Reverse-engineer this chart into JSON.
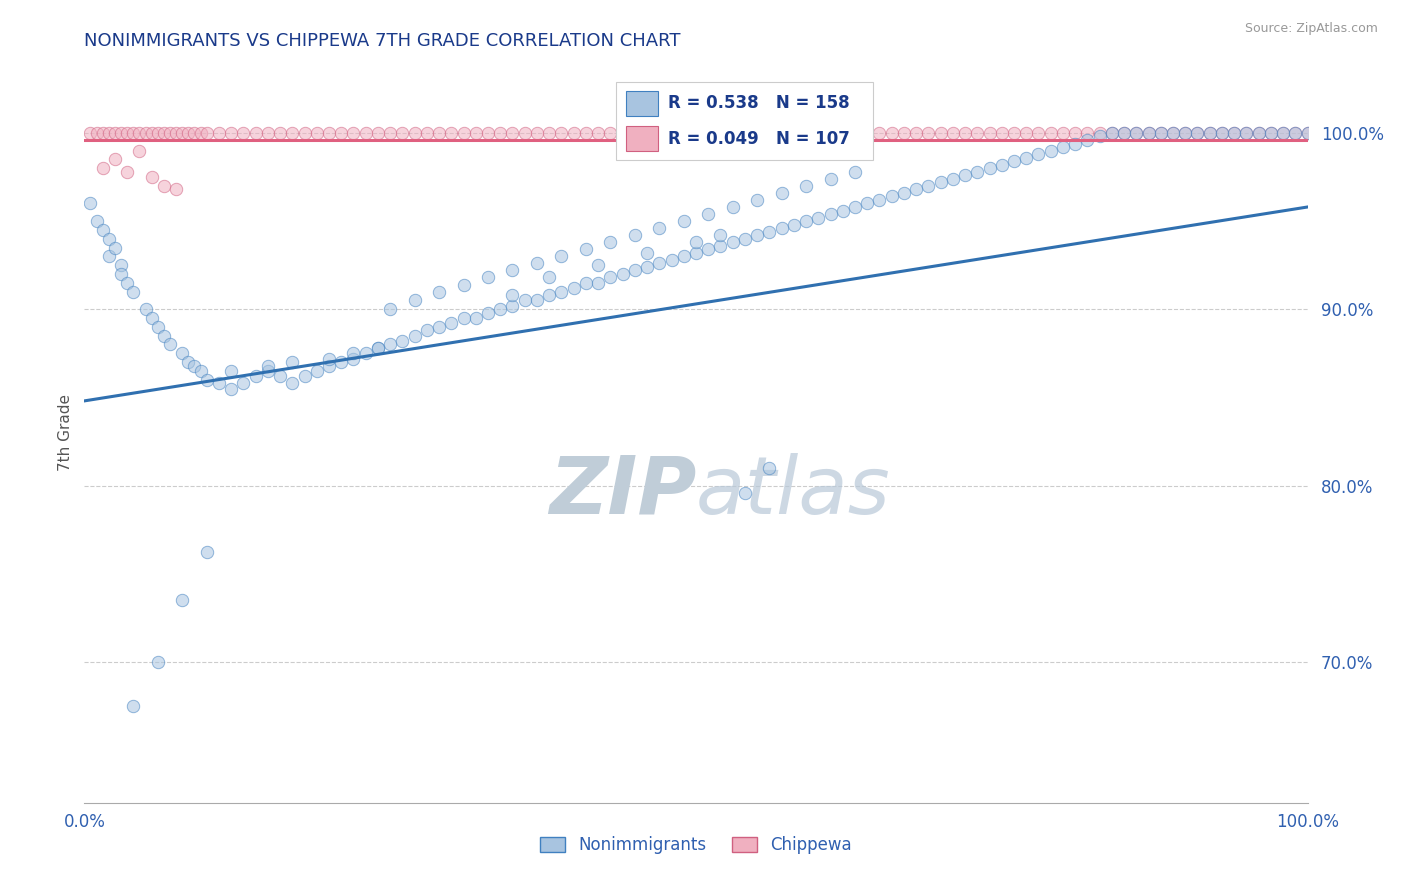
{
  "title": "NONIMMIGRANTS VS CHIPPEWA 7TH GRADE CORRELATION CHART",
  "source_text": "Source: ZipAtlas.com",
  "ylabel_left": "7th Grade",
  "legend_label1": "Nonimmigrants",
  "legend_label2": "Chippewa",
  "R1": 0.538,
  "N1": 158,
  "R2": 0.049,
  "N2": 107,
  "xlim": [
    0.0,
    1.0
  ],
  "ylim": [
    0.62,
    1.04
  ],
  "yticks": [
    0.7,
    0.8,
    0.9,
    1.0
  ],
  "ytick_labels": [
    "70.0%",
    "80.0%",
    "90.0%",
    "100.0%"
  ],
  "xtick_labels": [
    "0.0%",
    "100.0%"
  ],
  "xticks": [
    0.0,
    1.0
  ],
  "blue_color": "#a8c4e0",
  "pink_color": "#f0b0c0",
  "blue_edge_color": "#4080c0",
  "pink_edge_color": "#d06080",
  "blue_line_color": "#3070b0",
  "pink_line_color": "#e06080",
  "title_color": "#1a3a8a",
  "axis_label_color": "#3060b0",
  "tick_label_color": "#3060b0",
  "watermark_color": "#d0dce8",
  "background_color": "#ffffff",
  "blue_line_y_start": 0.848,
  "blue_line_y_end": 0.958,
  "pink_line_y": 0.996,
  "dot_size": 80,
  "dot_alpha": 0.55,
  "line_width": 2.2,
  "blue_scatter_x": [
    0.005,
    0.01,
    0.015,
    0.02,
    0.02,
    0.025,
    0.03,
    0.03,
    0.035,
    0.04,
    0.05,
    0.055,
    0.06,
    0.065,
    0.07,
    0.08,
    0.085,
    0.09,
    0.095,
    0.1,
    0.11,
    0.12,
    0.13,
    0.14,
    0.15,
    0.16,
    0.17,
    0.18,
    0.19,
    0.2,
    0.21,
    0.22,
    0.23,
    0.24,
    0.25,
    0.26,
    0.27,
    0.28,
    0.29,
    0.3,
    0.31,
    0.32,
    0.33,
    0.34,
    0.35,
    0.36,
    0.37,
    0.38,
    0.39,
    0.4,
    0.41,
    0.42,
    0.43,
    0.44,
    0.45,
    0.46,
    0.47,
    0.48,
    0.49,
    0.5,
    0.51,
    0.52,
    0.53,
    0.54,
    0.55,
    0.56,
    0.57,
    0.58,
    0.59,
    0.6,
    0.61,
    0.62,
    0.63,
    0.64,
    0.65,
    0.66,
    0.67,
    0.68,
    0.69,
    0.7,
    0.71,
    0.72,
    0.73,
    0.74,
    0.75,
    0.76,
    0.77,
    0.78,
    0.79,
    0.8,
    0.81,
    0.82,
    0.83,
    0.84,
    0.85,
    0.86,
    0.87,
    0.88,
    0.89,
    0.9,
    0.91,
    0.92,
    0.93,
    0.94,
    0.95,
    0.96,
    0.97,
    0.98,
    0.99,
    1.0,
    0.25,
    0.27,
    0.29,
    0.31,
    0.33,
    0.35,
    0.37,
    0.39,
    0.41,
    0.43,
    0.45,
    0.47,
    0.49,
    0.51,
    0.53,
    0.55,
    0.57,
    0.59,
    0.61,
    0.63,
    0.2,
    0.22,
    0.24,
    0.15,
    0.17,
    0.12,
    0.1,
    0.08,
    0.06,
    0.04,
    0.35,
    0.38,
    0.42,
    0.46,
    0.5,
    0.52,
    0.54,
    0.56
  ],
  "blue_scatter_y": [
    0.96,
    0.95,
    0.945,
    0.94,
    0.93,
    0.935,
    0.925,
    0.92,
    0.915,
    0.91,
    0.9,
    0.895,
    0.89,
    0.885,
    0.88,
    0.875,
    0.87,
    0.868,
    0.865,
    0.86,
    0.858,
    0.855,
    0.858,
    0.862,
    0.865,
    0.862,
    0.858,
    0.862,
    0.865,
    0.868,
    0.87,
    0.872,
    0.875,
    0.878,
    0.88,
    0.882,
    0.885,
    0.888,
    0.89,
    0.892,
    0.895,
    0.895,
    0.898,
    0.9,
    0.902,
    0.905,
    0.905,
    0.908,
    0.91,
    0.912,
    0.915,
    0.915,
    0.918,
    0.92,
    0.922,
    0.924,
    0.926,
    0.928,
    0.93,
    0.932,
    0.934,
    0.936,
    0.938,
    0.94,
    0.942,
    0.944,
    0.946,
    0.948,
    0.95,
    0.952,
    0.954,
    0.956,
    0.958,
    0.96,
    0.962,
    0.964,
    0.966,
    0.968,
    0.97,
    0.972,
    0.974,
    0.976,
    0.978,
    0.98,
    0.982,
    0.984,
    0.986,
    0.988,
    0.99,
    0.992,
    0.994,
    0.996,
    0.998,
    1.0,
    1.0,
    1.0,
    1.0,
    1.0,
    1.0,
    1.0,
    1.0,
    1.0,
    1.0,
    1.0,
    1.0,
    1.0,
    1.0,
    1.0,
    1.0,
    1.0,
    0.9,
    0.905,
    0.91,
    0.914,
    0.918,
    0.922,
    0.926,
    0.93,
    0.934,
    0.938,
    0.942,
    0.946,
    0.95,
    0.954,
    0.958,
    0.962,
    0.966,
    0.97,
    0.974,
    0.978,
    0.872,
    0.875,
    0.878,
    0.868,
    0.87,
    0.865,
    0.762,
    0.735,
    0.7,
    0.675,
    0.908,
    0.918,
    0.925,
    0.932,
    0.938,
    0.942,
    0.796,
    0.81
  ],
  "pink_scatter_x": [
    0.005,
    0.01,
    0.015,
    0.02,
    0.025,
    0.03,
    0.035,
    0.04,
    0.045,
    0.05,
    0.055,
    0.06,
    0.065,
    0.07,
    0.075,
    0.08,
    0.085,
    0.09,
    0.095,
    0.1,
    0.11,
    0.12,
    0.13,
    0.14,
    0.15,
    0.16,
    0.17,
    0.18,
    0.19,
    0.2,
    0.21,
    0.22,
    0.23,
    0.24,
    0.25,
    0.26,
    0.27,
    0.28,
    0.29,
    0.3,
    0.31,
    0.32,
    0.33,
    0.34,
    0.35,
    0.36,
    0.37,
    0.38,
    0.39,
    0.4,
    0.41,
    0.42,
    0.43,
    0.44,
    0.45,
    0.46,
    0.47,
    0.48,
    0.49,
    0.5,
    0.51,
    0.52,
    0.53,
    0.54,
    0.55,
    0.56,
    0.57,
    0.58,
    0.59,
    0.6,
    0.61,
    0.62,
    0.63,
    0.64,
    0.65,
    0.66,
    0.67,
    0.68,
    0.69,
    0.7,
    0.71,
    0.72,
    0.73,
    0.74,
    0.75,
    0.76,
    0.77,
    0.78,
    0.79,
    0.8,
    0.81,
    0.82,
    0.83,
    0.84,
    0.85,
    0.86,
    0.87,
    0.88,
    0.89,
    0.9,
    0.91,
    0.92,
    0.93,
    0.94,
    0.95,
    0.96,
    0.97,
    0.98,
    0.99,
    1.0,
    0.015,
    0.025,
    0.035,
    0.045,
    0.055,
    0.065,
    0.075
  ],
  "pink_scatter_y": [
    1.0,
    1.0,
    1.0,
    1.0,
    1.0,
    1.0,
    1.0,
    1.0,
    1.0,
    1.0,
    1.0,
    1.0,
    1.0,
    1.0,
    1.0,
    1.0,
    1.0,
    1.0,
    1.0,
    1.0,
    1.0,
    1.0,
    1.0,
    1.0,
    1.0,
    1.0,
    1.0,
    1.0,
    1.0,
    1.0,
    1.0,
    1.0,
    1.0,
    1.0,
    1.0,
    1.0,
    1.0,
    1.0,
    1.0,
    1.0,
    1.0,
    1.0,
    1.0,
    1.0,
    1.0,
    1.0,
    1.0,
    1.0,
    1.0,
    1.0,
    1.0,
    1.0,
    1.0,
    1.0,
    1.0,
    1.0,
    1.0,
    1.0,
    1.0,
    1.0,
    1.0,
    1.0,
    1.0,
    1.0,
    1.0,
    1.0,
    1.0,
    1.0,
    1.0,
    1.0,
    1.0,
    1.0,
    1.0,
    1.0,
    1.0,
    1.0,
    1.0,
    1.0,
    1.0,
    1.0,
    1.0,
    1.0,
    1.0,
    1.0,
    1.0,
    1.0,
    1.0,
    1.0,
    1.0,
    1.0,
    1.0,
    1.0,
    1.0,
    1.0,
    1.0,
    1.0,
    1.0,
    1.0,
    1.0,
    1.0,
    1.0,
    1.0,
    1.0,
    1.0,
    1.0,
    1.0,
    1.0,
    1.0,
    1.0,
    1.0,
    0.98,
    0.985,
    0.978,
    0.99,
    0.975,
    0.97,
    0.968
  ]
}
